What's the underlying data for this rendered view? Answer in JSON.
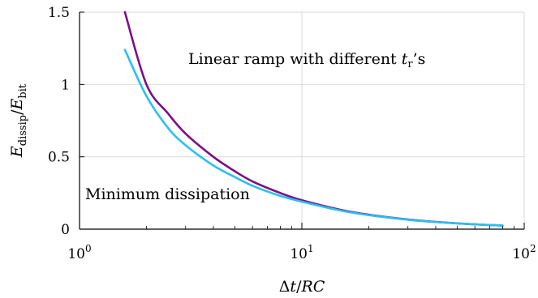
{
  "chart_data": {
    "type": "line",
    "xscale": "log",
    "xlim": [
      1,
      100
    ],
    "ylim": [
      0,
      1.5
    ],
    "grid": true,
    "xlabel": "Δt/RC",
    "ylabel": "E_dissip/E_bit",
    "x_ticks": [
      {
        "value": 1,
        "base": "10",
        "exp": "0"
      },
      {
        "value": 10,
        "base": "10",
        "exp": "1"
      },
      {
        "value": 100,
        "base": "10",
        "exp": "2"
      }
    ],
    "y_ticks": [
      {
        "value": 0,
        "label": "0"
      },
      {
        "value": 0.5,
        "label": "0.5"
      },
      {
        "value": 1,
        "label": "1"
      },
      {
        "value": 1.5,
        "label": "1.5"
      }
    ],
    "series": [
      {
        "name": "Linear ramp with different t_r's",
        "color": "#7b0f84",
        "x": [
          1.6,
          2.0,
          2.5,
          3,
          4,
          5,
          6,
          8,
          10,
          15,
          20,
          30,
          40,
          60,
          80
        ],
        "y": [
          1.5,
          1.0,
          0.8,
          0.66,
          0.5,
          0.4,
          0.33,
          0.25,
          0.2,
          0.133,
          0.1,
          0.067,
          0.05,
          0.033,
          0.025
        ]
      },
      {
        "name": "Minimum dissipation",
        "color": "#2bc0ee",
        "x": [
          1.6,
          2.0,
          2.5,
          3,
          4,
          5,
          6,
          8,
          10,
          15,
          20,
          30,
          40,
          60,
          80
        ],
        "y": [
          1.24,
          0.92,
          0.7,
          0.58,
          0.44,
          0.36,
          0.3,
          0.23,
          0.19,
          0.128,
          0.097,
          0.065,
          0.049,
          0.033,
          0.025
        ]
      }
    ],
    "annotations": [
      {
        "text": "Linear ramp with different",
        "var": "t",
        "sub": "r",
        "suffix": "’s",
        "color": "#7b0f84"
      },
      {
        "text": "Minimum dissipation",
        "color": "#2bc0ee"
      }
    ]
  }
}
